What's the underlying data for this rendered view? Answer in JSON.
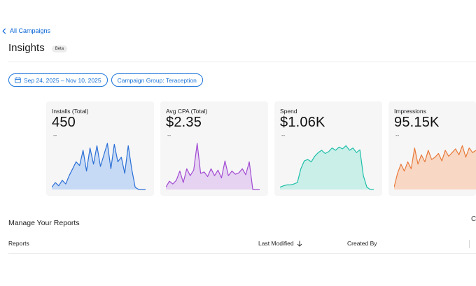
{
  "nav": {
    "back_label": "All Campaigns"
  },
  "header": {
    "title": "Insights",
    "badge": "Beta"
  },
  "filters": {
    "date_range": "Sep 24, 2025 – Nov 10, 2025",
    "campaign_group": "Campaign Group: Teraception"
  },
  "metrics": [
    {
      "label": "Installs (Total)",
      "value": "450",
      "delta": "--",
      "color": "#2a6fd6",
      "fill": "#c7daf5",
      "series": [
        0.05,
        0.15,
        0.08,
        0.2,
        0.12,
        0.3,
        0.45,
        0.6,
        0.52,
        0.85,
        0.4,
        0.9,
        0.55,
        0.95,
        0.5,
        0.75,
        1.0,
        0.45,
        0.98,
        0.6,
        0.7,
        0.35,
        0.95,
        0.45,
        0.05,
        0.0,
        0.0,
        0.0
      ]
    },
    {
      "label": "Avg CPA (Total)",
      "value": "$2.35",
      "delta": "--",
      "color": "#a24bd2",
      "fill": "#e6d3f2",
      "series": [
        0.05,
        0.18,
        0.12,
        0.2,
        0.4,
        0.15,
        0.45,
        0.3,
        0.42,
        1.0,
        0.35,
        0.38,
        0.28,
        0.45,
        0.3,
        0.42,
        0.25,
        0.62,
        0.3,
        0.4,
        0.33,
        0.36,
        0.45,
        0.32,
        0.6,
        0.0,
        0.0,
        0.0
      ]
    },
    {
      "label": "Spend",
      "value": "$1.06K",
      "delta": "--",
      "color": "#1fbfa9",
      "fill": "#c9efe8",
      "series": [
        0.05,
        0.08,
        0.1,
        0.1,
        0.12,
        0.15,
        0.45,
        0.62,
        0.65,
        0.6,
        0.72,
        0.8,
        0.85,
        0.78,
        0.82,
        0.9,
        0.85,
        0.92,
        0.88,
        0.95,
        0.85,
        0.9,
        0.8,
        0.86,
        0.3,
        0.05,
        0.0,
        0.0
      ]
    },
    {
      "label": "Impressions",
      "value": "95.15K",
      "delta": "--",
      "color": "#e87a3a",
      "fill": "#f8d7c4",
      "series": [
        0.05,
        0.35,
        0.55,
        0.4,
        0.6,
        0.45,
        0.9,
        0.55,
        0.75,
        0.6,
        0.85,
        0.65,
        0.7,
        0.78,
        0.62,
        0.85,
        0.72,
        0.8,
        0.88,
        0.75,
        0.95,
        0.7,
        0.9,
        0.8,
        0.85
      ]
    }
  ],
  "reports": {
    "title": "Manage Your Reports",
    "edge_glyph": "C",
    "columns": {
      "reports": "Reports",
      "last_modified": "Last Modified",
      "created_by": "Created By"
    }
  }
}
